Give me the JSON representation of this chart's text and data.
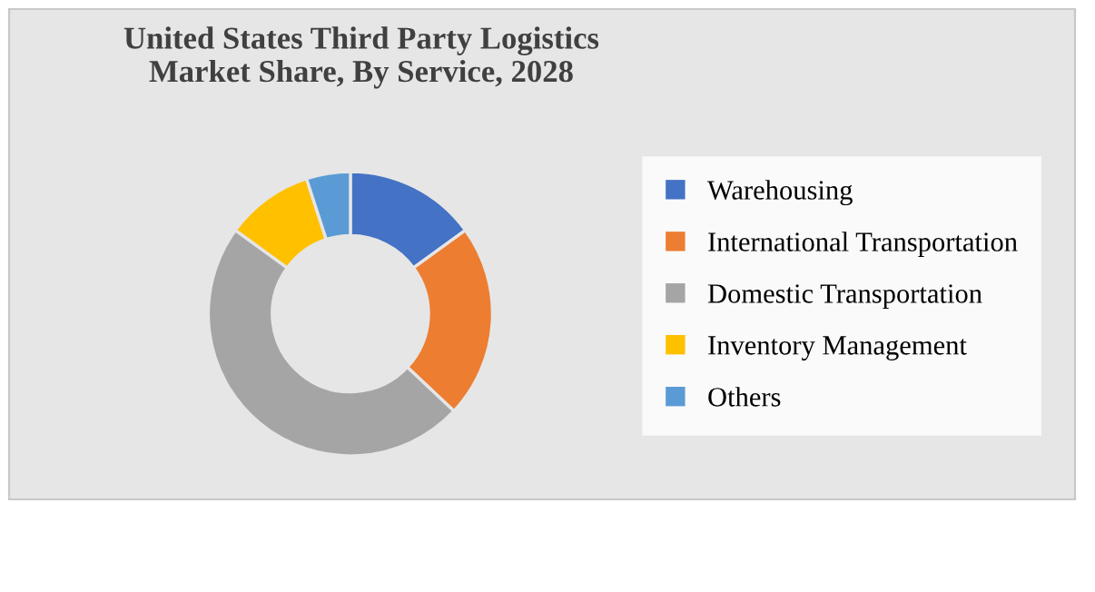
{
  "chart_data": {
    "type": "donut",
    "title": "United States Third Party Logistics\nMarket Share, By Service, 2028",
    "categories": [
      "Warehousing",
      "International Transportation",
      "Domestic Transportation",
      "Inventory Management",
      "Others"
    ],
    "values": [
      15,
      22,
      48,
      10,
      5
    ],
    "colors": [
      "#4472c4",
      "#ed7d31",
      "#a5a5a5",
      "#ffc000",
      "#5b9bd5"
    ],
    "legend": "right"
  }
}
